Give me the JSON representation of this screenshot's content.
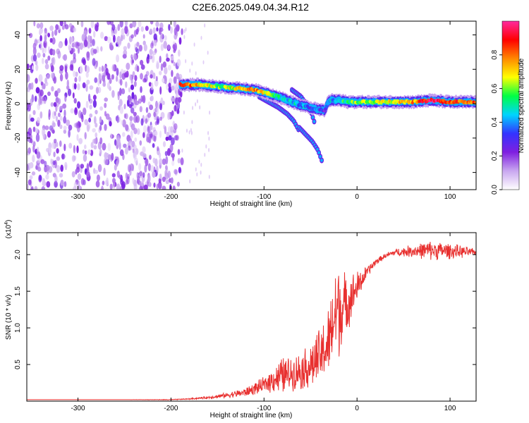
{
  "title": "C2E6.2025.049.04.34.R12",
  "colors": {
    "snr_line": "#e8302f",
    "axis": "#000000"
  },
  "chart_data": [
    {
      "type": "heatmap",
      "xlabel": "Height of straight line (km)",
      "ylabel": "Frequency (Hz)",
      "xlim": [
        -355,
        128
      ],
      "ylim": [
        -50,
        48
      ],
      "x_ticks": [
        -300,
        -200,
        -100,
        0,
        100
      ],
      "x_tick_labels": [
        "-300",
        "-200",
        "-100",
        "0",
        "100"
      ],
      "y_ticks": [
        40,
        20,
        0,
        -20,
        -40
      ],
      "y_tick_labels": [
        "40",
        "20",
        "0",
        "-20",
        "-40"
      ],
      "colorbar": {
        "label": "Normalized spectral amplitude",
        "range": [
          0,
          1
        ],
        "ticks": [
          0.0,
          0.2,
          0.4,
          0.6,
          0.8
        ],
        "tick_labels": [
          "0.0",
          "0.2",
          "0.4",
          "0.6",
          "0.8"
        ],
        "colormap": [
          "#ffffff",
          "#c9a7f0",
          "#7f1fe0",
          "#3333ff",
          "#00d4ff",
          "#00ff44",
          "#ffff00",
          "#ff8800",
          "#ff0000",
          "#ff2a9e"
        ]
      },
      "noise_region": {
        "x_range": [
          -355,
          -188
        ],
        "amplitude": [
          0.05,
          0.25
        ]
      },
      "ridge_main": {
        "x": [
          -190,
          -170,
          -150,
          -130,
          -110,
          -90,
          -75,
          -60,
          -45,
          -35,
          -30,
          -20,
          -10,
          0,
          20,
          40,
          60,
          80,
          100,
          128
        ],
        "y": [
          11,
          11,
          10,
          9,
          8,
          5,
          2,
          -1,
          -3,
          -4,
          2,
          2,
          1,
          1,
          1,
          1,
          1,
          2,
          1,
          1
        ],
        "amplitude": [
          0.95,
          0.7,
          0.6,
          0.65,
          0.8,
          0.55,
          0.45,
          0.4,
          0.35,
          0.3,
          0.4,
          0.5,
          0.55,
          0.6,
          0.65,
          0.7,
          0.75,
          0.95,
          0.85,
          0.8
        ]
      },
      "ridge_branches": [
        {
          "x": [
            -105,
            -95,
            -85,
            -75,
            -68,
            -62
          ],
          "y": [
            4,
            1,
            -2,
            -6,
            -10,
            -16
          ]
        },
        {
          "x": [
            -62,
            -55,
            -48,
            -42,
            -38
          ],
          "y": [
            -14,
            -18,
            -22,
            -27,
            -33
          ]
        },
        {
          "x": [
            -70,
            -60,
            -50,
            -45
          ],
          "y": [
            8,
            4,
            -4,
            -12
          ]
        }
      ]
    },
    {
      "type": "line",
      "xlabel": "Height of straight line (km)",
      "ylabel": "SNR (10 * v/v)",
      "scale_label": "(x10",
      "scale_exponent": "4",
      "scale_suffix": ")",
      "xlim": [
        -355,
        128
      ],
      "ylim": [
        0,
        2.3
      ],
      "x_ticks": [
        -300,
        -200,
        -100,
        0,
        100
      ],
      "x_tick_labels": [
        "-300",
        "-200",
        "-100",
        "0",
        "100"
      ],
      "y_ticks": [
        0.5,
        1.0,
        1.5,
        2.0
      ],
      "y_tick_labels": [
        "0.5",
        "1.0",
        "1.5",
        "2.0"
      ],
      "series": [
        {
          "x": [
            -355,
            -300,
            -250,
            -200,
            -180,
            -160,
            -140,
            -120,
            -100,
            -90,
            -80,
            -70,
            -60,
            -50,
            -40,
            -30,
            -25,
            -20,
            -15,
            -10,
            -5,
            0,
            10,
            20,
            30,
            40,
            60,
            80,
            100,
            110,
            128
          ],
          "y": [
            0.02,
            0.02,
            0.02,
            0.02,
            0.03,
            0.05,
            0.08,
            0.12,
            0.22,
            0.3,
            0.35,
            0.38,
            0.42,
            0.48,
            0.6,
            0.8,
            1.1,
            1.3,
            1.25,
            1.35,
            1.45,
            1.55,
            1.75,
            1.9,
            1.98,
            2.03,
            2.05,
            2.06,
            2.05,
            2.04,
            2.03
          ],
          "noise": [
            0.0,
            0.0,
            0.0,
            0.005,
            0.01,
            0.02,
            0.04,
            0.07,
            0.12,
            0.2,
            0.3,
            0.25,
            0.3,
            0.35,
            0.45,
            0.55,
            0.7,
            0.8,
            0.6,
            0.4,
            0.35,
            0.25,
            0.1,
            0.05,
            0.04,
            0.05,
            0.1,
            0.15,
            0.12,
            0.1,
            0.05
          ]
        }
      ]
    }
  ]
}
